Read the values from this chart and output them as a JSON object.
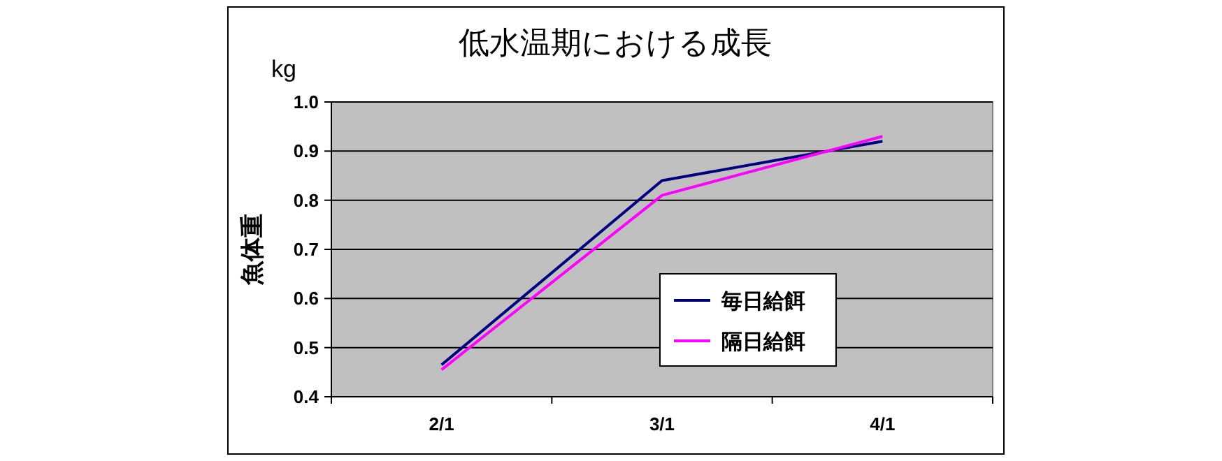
{
  "chart_data": {
    "type": "line",
    "title": "低水温期における成長",
    "ylabel": "魚体重",
    "annotations": [
      "kg"
    ],
    "categories": [
      "2/1",
      "3/1",
      "4/1"
    ],
    "series": [
      {
        "name": "毎日給餌",
        "color": "#000080",
        "values": [
          0.465,
          0.84,
          0.92
        ]
      },
      {
        "name": "隔日給餌",
        "color": "#ff00ff",
        "values": [
          0.455,
          0.81,
          0.93
        ]
      }
    ],
    "ylim": [
      0.4,
      1.0
    ],
    "yticks": [
      {
        "value": 0.4,
        "label": "0.4"
      },
      {
        "value": 0.5,
        "label": "0.5"
      },
      {
        "value": 0.6,
        "label": "0.6"
      },
      {
        "value": 0.7,
        "label": "0.7"
      },
      {
        "value": 0.8,
        "label": "0.8"
      },
      {
        "value": 0.9,
        "label": "0.9"
      },
      {
        "value": 1.0,
        "label": "1.0"
      }
    ],
    "grid": "y",
    "legend": "bottom right",
    "marker": "none",
    "line_style": "solid"
  }
}
